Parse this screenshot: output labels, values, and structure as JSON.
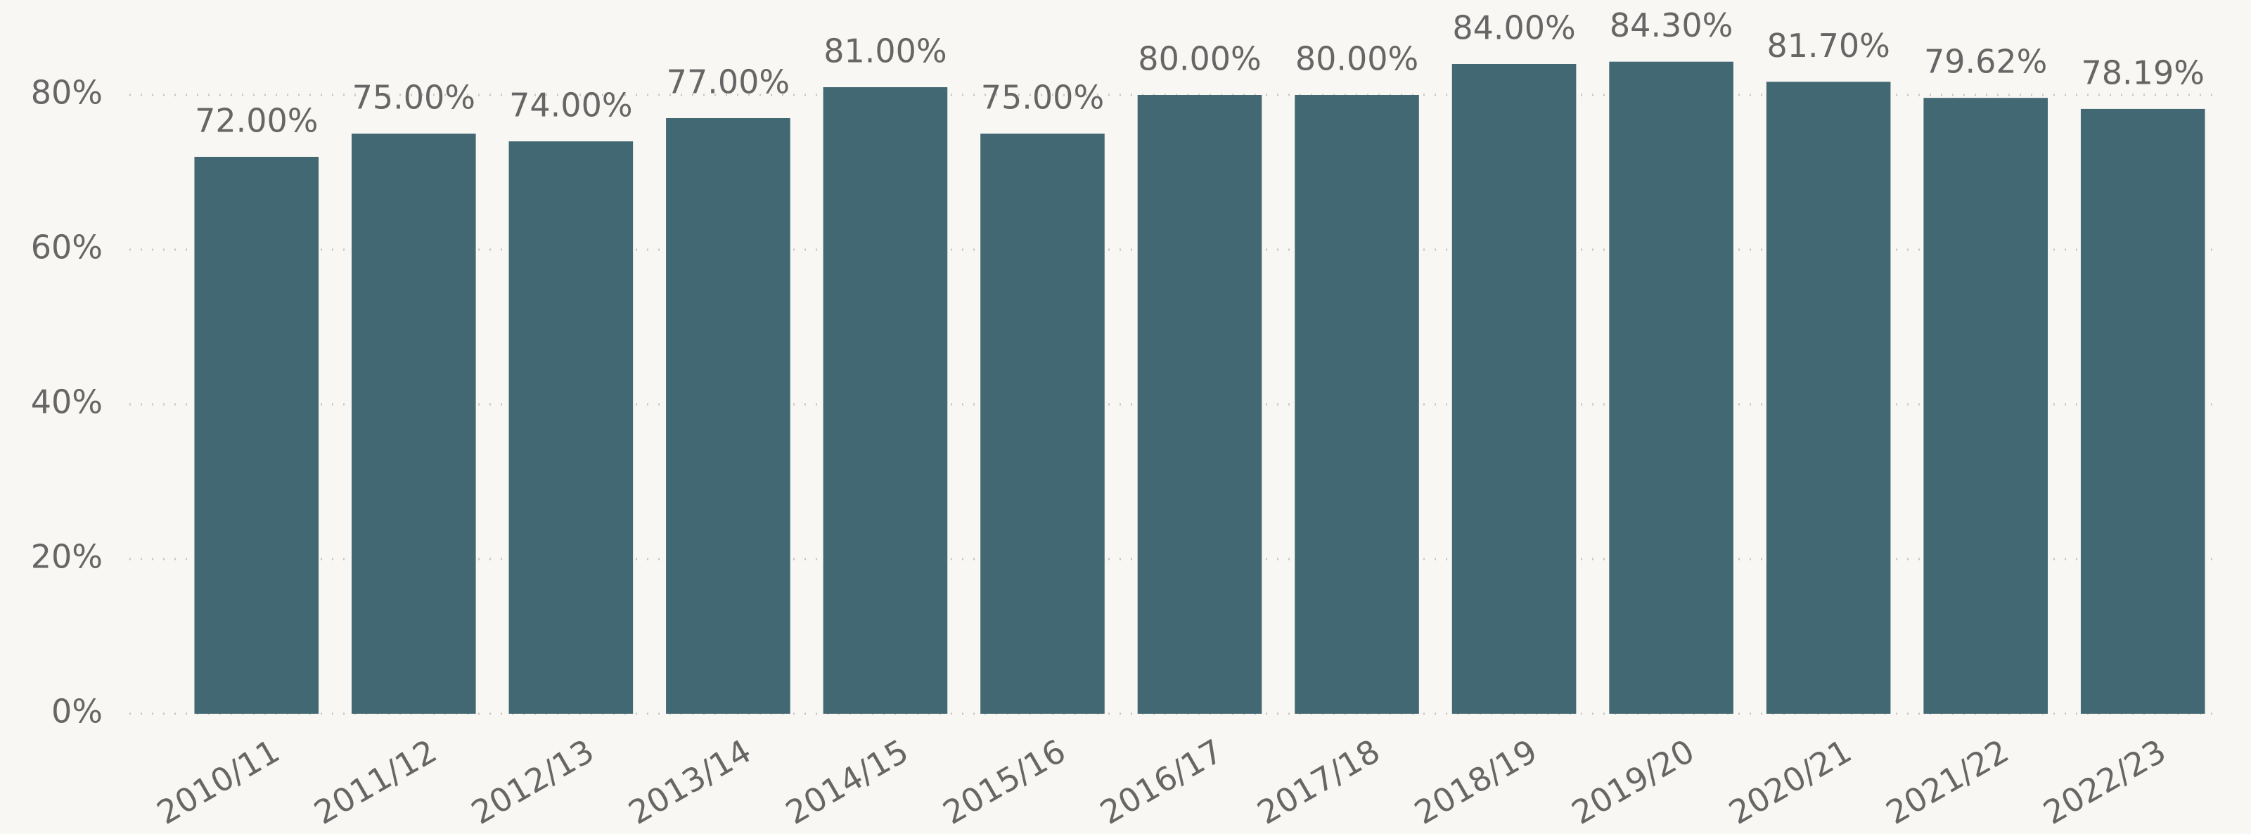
{
  "chart_data": {
    "type": "bar",
    "categories": [
      "2010/11",
      "2011/12",
      "2012/13",
      "2013/14",
      "2014/15",
      "2015/16",
      "2016/17",
      "2017/18",
      "2018/19",
      "2019/20",
      "2020/21",
      "2021/22",
      "2022/23"
    ],
    "values": [
      72,
      75,
      74,
      77,
      81,
      75,
      80,
      80,
      84,
      84.3,
      81.7,
      79.62,
      78.19
    ],
    "value_labels": [
      "72.00%",
      "75.00%",
      "74.00%",
      "77.00%",
      "81.00%",
      "75.00%",
      "80.00%",
      "80.00%",
      "84.00%",
      "84.30%",
      "81.70%",
      "79.62%",
      "78.19%"
    ],
    "color": "#426873",
    "ylim": [
      0,
      90
    ],
    "yticks": [
      {
        "value": 0,
        "label": "0%"
      },
      {
        "value": 20,
        "label": "20%"
      },
      {
        "value": 40,
        "label": "40%"
      },
      {
        "value": 60,
        "label": "60%"
      },
      {
        "value": 80,
        "label": "80%"
      }
    ],
    "grid": true
  }
}
